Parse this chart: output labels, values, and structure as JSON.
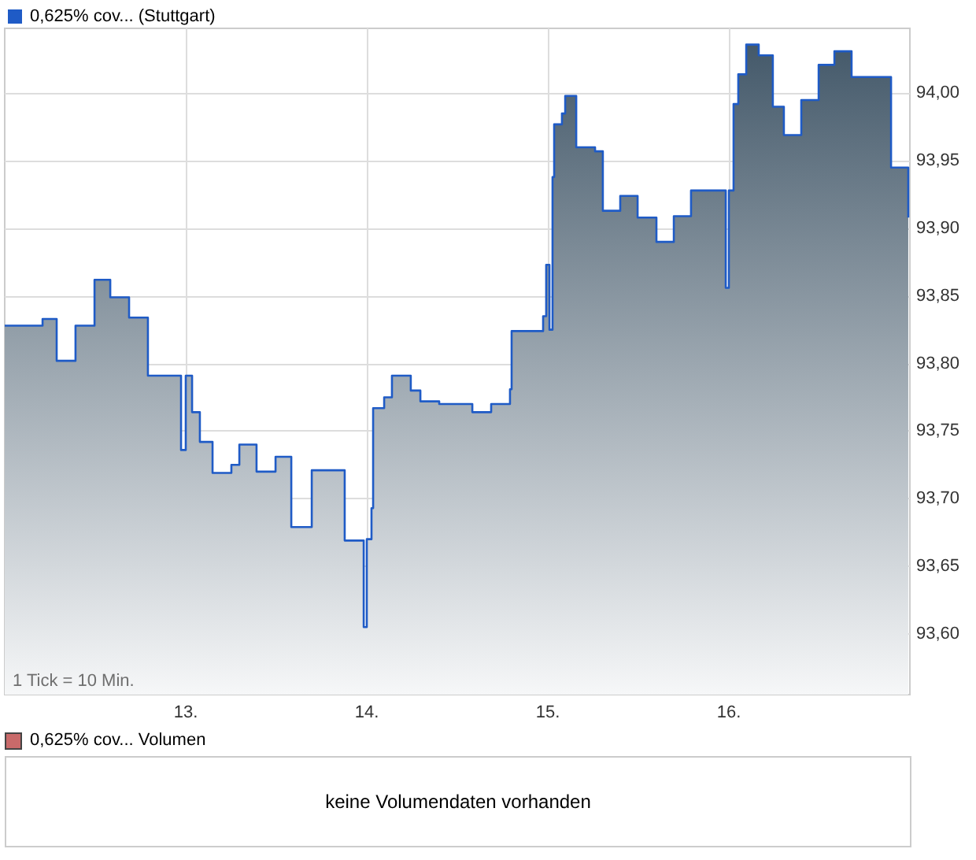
{
  "chart_data": [
    {
      "type": "area",
      "x": [
        12.0,
        12.209,
        12.209,
        12.287,
        12.287,
        12.391,
        12.391,
        12.496,
        12.496,
        12.583,
        12.583,
        12.687,
        12.687,
        12.791,
        12.791,
        12.974,
        12.974,
        13.0,
        13.0,
        13.035,
        13.035,
        13.078,
        13.078,
        13.148,
        13.148,
        13.252,
        13.252,
        13.296,
        13.296,
        13.391,
        13.391,
        13.496,
        13.496,
        13.583,
        13.583,
        13.696,
        13.696,
        13.878,
        13.878,
        13.983,
        13.983,
        14.0,
        14.0,
        14.026,
        14.026,
        14.035,
        14.035,
        14.096,
        14.096,
        14.139,
        14.139,
        14.243,
        14.243,
        14.296,
        14.296,
        14.4,
        14.4,
        14.583,
        14.583,
        14.687,
        14.687,
        14.791,
        14.791,
        14.8,
        14.8,
        14.974,
        14.974,
        14.991,
        14.991,
        15.009,
        15.009,
        15.026,
        15.026,
        15.035,
        15.035,
        15.078,
        15.078,
        15.096,
        15.096,
        15.157,
        15.157,
        15.261,
        15.261,
        15.304,
        15.304,
        15.4,
        15.4,
        15.496,
        15.496,
        15.6,
        15.6,
        15.696,
        15.696,
        15.791,
        15.791,
        15.983,
        15.983,
        16.0,
        16.0,
        16.026,
        16.026,
        16.052,
        16.052,
        16.096,
        16.096,
        16.165,
        16.165,
        16.243,
        16.243,
        16.304,
        16.304,
        16.4,
        16.4,
        16.496,
        16.496,
        16.583,
        16.583,
        16.678,
        16.678,
        16.896,
        16.896,
        16.991,
        16.991
      ],
      "series": [
        {
          "name": "0,625% cov... (Stuttgart)",
          "color": "#1f5bc6",
          "values": [
            93.828,
            93.828,
            93.833,
            93.833,
            93.802,
            93.802,
            93.828,
            93.828,
            93.862,
            93.862,
            93.849,
            93.849,
            93.834,
            93.834,
            93.791,
            93.791,
            93.736,
            93.736,
            93.791,
            93.791,
            93.764,
            93.764,
            93.742,
            93.742,
            93.719,
            93.719,
            93.725,
            93.725,
            93.74,
            93.74,
            93.72,
            93.72,
            93.731,
            93.731,
            93.679,
            93.679,
            93.721,
            93.721,
            93.669,
            93.669,
            93.605,
            93.605,
            93.67,
            93.67,
            93.693,
            93.693,
            93.767,
            93.767,
            93.775,
            93.775,
            93.791,
            93.791,
            93.78,
            93.78,
            93.772,
            93.772,
            93.77,
            93.77,
            93.764,
            93.764,
            93.77,
            93.77,
            93.781,
            93.781,
            93.824,
            93.824,
            93.835,
            93.835,
            93.873,
            93.873,
            93.825,
            93.825,
            93.938,
            93.938,
            93.977,
            93.977,
            93.985,
            93.985,
            93.998,
            93.998,
            93.96,
            93.96,
            93.957,
            93.957,
            93.913,
            93.913,
            93.924,
            93.924,
            93.908,
            93.908,
            93.89,
            93.89,
            93.909,
            93.909,
            93.928,
            93.928,
            93.856,
            93.856,
            93.928,
            93.928,
            93.992,
            93.992,
            94.014,
            94.014,
            94.036,
            94.036,
            94.028,
            94.028,
            93.99,
            93.99,
            93.969,
            93.969,
            93.995,
            93.995,
            94.021,
            94.021,
            94.031,
            94.031,
            94.012,
            94.012,
            93.945,
            93.945,
            93.908
          ]
        }
      ],
      "xlim": [
        12,
        17
      ],
      "xticks": [
        {
          "value": 13,
          "label": "13."
        },
        {
          "value": 14,
          "label": "14."
        },
        {
          "value": 15,
          "label": "15."
        },
        {
          "value": 16,
          "label": "16."
        }
      ],
      "ylim": [
        93.555,
        94.048
      ],
      "yticks": [
        {
          "value": 93.6,
          "label": "93,60"
        },
        {
          "value": 93.65,
          "label": "93,65"
        },
        {
          "value": 93.7,
          "label": "93,70"
        },
        {
          "value": 93.75,
          "label": "93,75"
        },
        {
          "value": 93.8,
          "label": "93,80"
        },
        {
          "value": 93.85,
          "label": "93,85"
        },
        {
          "value": 93.9,
          "label": "93,90"
        },
        {
          "value": 93.95,
          "label": "93,95"
        },
        {
          "value": 94.0,
          "label": "94,00"
        }
      ],
      "grid": true,
      "legend": "top left",
      "marker": "none",
      "annotations": [
        "1 Tick = 10 Min."
      ]
    },
    {
      "type": "other",
      "title": "0,625% cov... Volumen",
      "annotations": [
        "keine Volumendaten vorhanden"
      ]
    }
  ]
}
